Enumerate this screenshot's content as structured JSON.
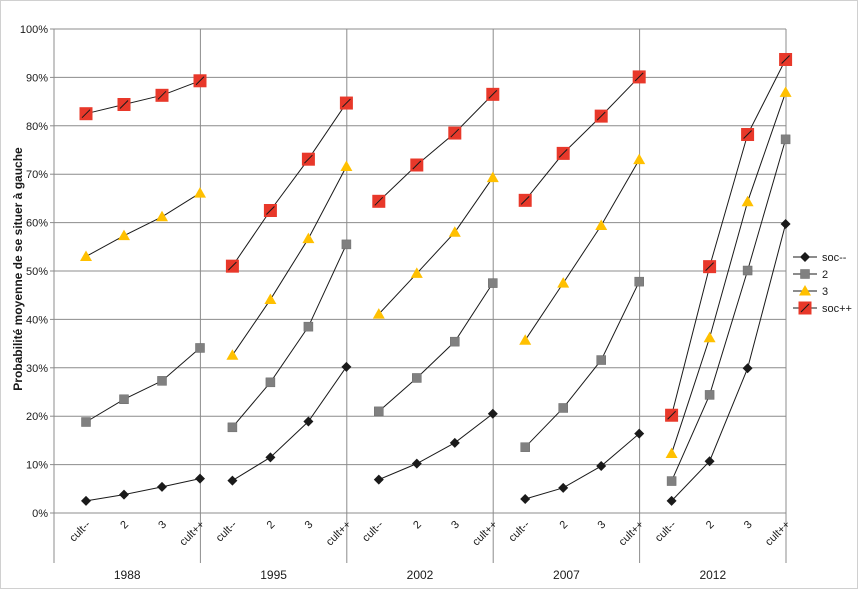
{
  "chart_data": {
    "type": "line",
    "ylabel": "Probabilité moyenne de se situer à gauche",
    "ylim": [
      0,
      1
    ],
    "y_ticks": [
      "0%",
      "10%",
      "20%",
      "30%",
      "40%",
      "50%",
      "60%",
      "70%",
      "80%",
      "90%",
      "100%"
    ],
    "grid": true,
    "legend_position": "right",
    "categories": [
      "cult--",
      "2",
      "3",
      "cult++"
    ],
    "groups": [
      "1988",
      "1995",
      "2002",
      "2007",
      "2012"
    ],
    "series": [
      {
        "name": "soc--",
        "color": "#1a1a1a",
        "marker": "diamond",
        "values": [
          [
            0.025,
            0.038,
            0.054,
            0.071
          ],
          [
            0.067,
            0.115,
            0.189,
            0.302
          ],
          [
            0.069,
            0.102,
            0.145,
            0.205
          ],
          [
            0.029,
            0.052,
            0.097,
            0.164
          ],
          [
            0.025,
            0.107,
            0.299,
            0.597
          ]
        ]
      },
      {
        "name": "2",
        "color": "#808080",
        "marker": "square",
        "values": [
          [
            0.188,
            0.235,
            0.273,
            0.341
          ],
          [
            0.177,
            0.27,
            0.385,
            0.555
          ],
          [
            0.21,
            0.279,
            0.354,
            0.475
          ],
          [
            0.136,
            0.217,
            0.316,
            0.478
          ],
          [
            0.066,
            0.244,
            0.501,
            0.772
          ]
        ]
      },
      {
        "name": "3",
        "color": "#ffc000",
        "marker": "triangle",
        "values": [
          [
            0.53,
            0.573,
            0.612,
            0.661
          ],
          [
            0.326,
            0.441,
            0.567,
            0.716
          ],
          [
            0.411,
            0.495,
            0.58,
            0.693
          ],
          [
            0.357,
            0.475,
            0.594,
            0.73
          ],
          [
            0.123,
            0.362,
            0.643,
            0.869
          ]
        ]
      },
      {
        "name": "soc++",
        "color": "#e8382a",
        "marker": "square-x",
        "values": [
          [
            0.825,
            0.844,
            0.863,
            0.893
          ],
          [
            0.51,
            0.625,
            0.731,
            0.847
          ],
          [
            0.644,
            0.719,
            0.785,
            0.865
          ],
          [
            0.646,
            0.743,
            0.82,
            0.901
          ],
          [
            0.202,
            0.509,
            0.782,
            0.937
          ]
        ]
      }
    ]
  }
}
